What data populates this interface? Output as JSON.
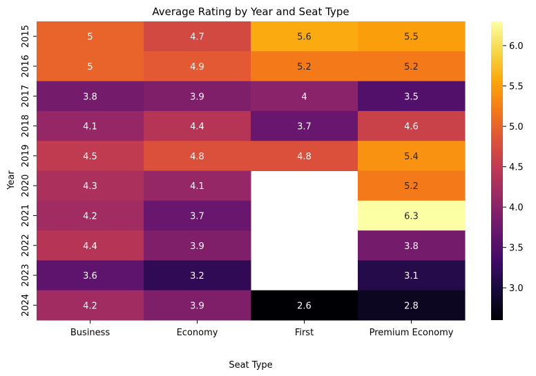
{
  "chart_data": {
    "type": "heatmap",
    "title": "Average Rating by Year and Seat Type",
    "xlabel": "Seat Type",
    "ylabel": "Year",
    "x_categories": [
      "Business",
      "Economy",
      "First",
      "Premium Economy"
    ],
    "y_categories": [
      "2015",
      "2016",
      "2017",
      "2018",
      "2019",
      "2020",
      "2021",
      "2022",
      "2023",
      "2024"
    ],
    "values": [
      [
        5,
        4.7,
        5.6,
        5.5
      ],
      [
        5,
        4.9,
        5.2,
        5.2
      ],
      [
        3.8,
        3.9,
        4,
        3.5
      ],
      [
        4.1,
        4.4,
        3.7,
        4.6
      ],
      [
        4.5,
        4.8,
        4.8,
        5.4
      ],
      [
        4.3,
        4.1,
        null,
        5.2
      ],
      [
        4.2,
        3.7,
        null,
        6.3
      ],
      [
        4.4,
        3.9,
        null,
        3.8
      ],
      [
        3.6,
        3.2,
        null,
        3.1
      ],
      [
        4.2,
        3.9,
        2.6,
        2.8
      ]
    ],
    "colormap": "inferno",
    "colorbar": {
      "min": 2.6,
      "max": 6.3,
      "ticks": [
        "3.0",
        "3.5",
        "4.0",
        "4.5",
        "5.0",
        "5.5",
        "6.0"
      ]
    },
    "annotations": true
  }
}
